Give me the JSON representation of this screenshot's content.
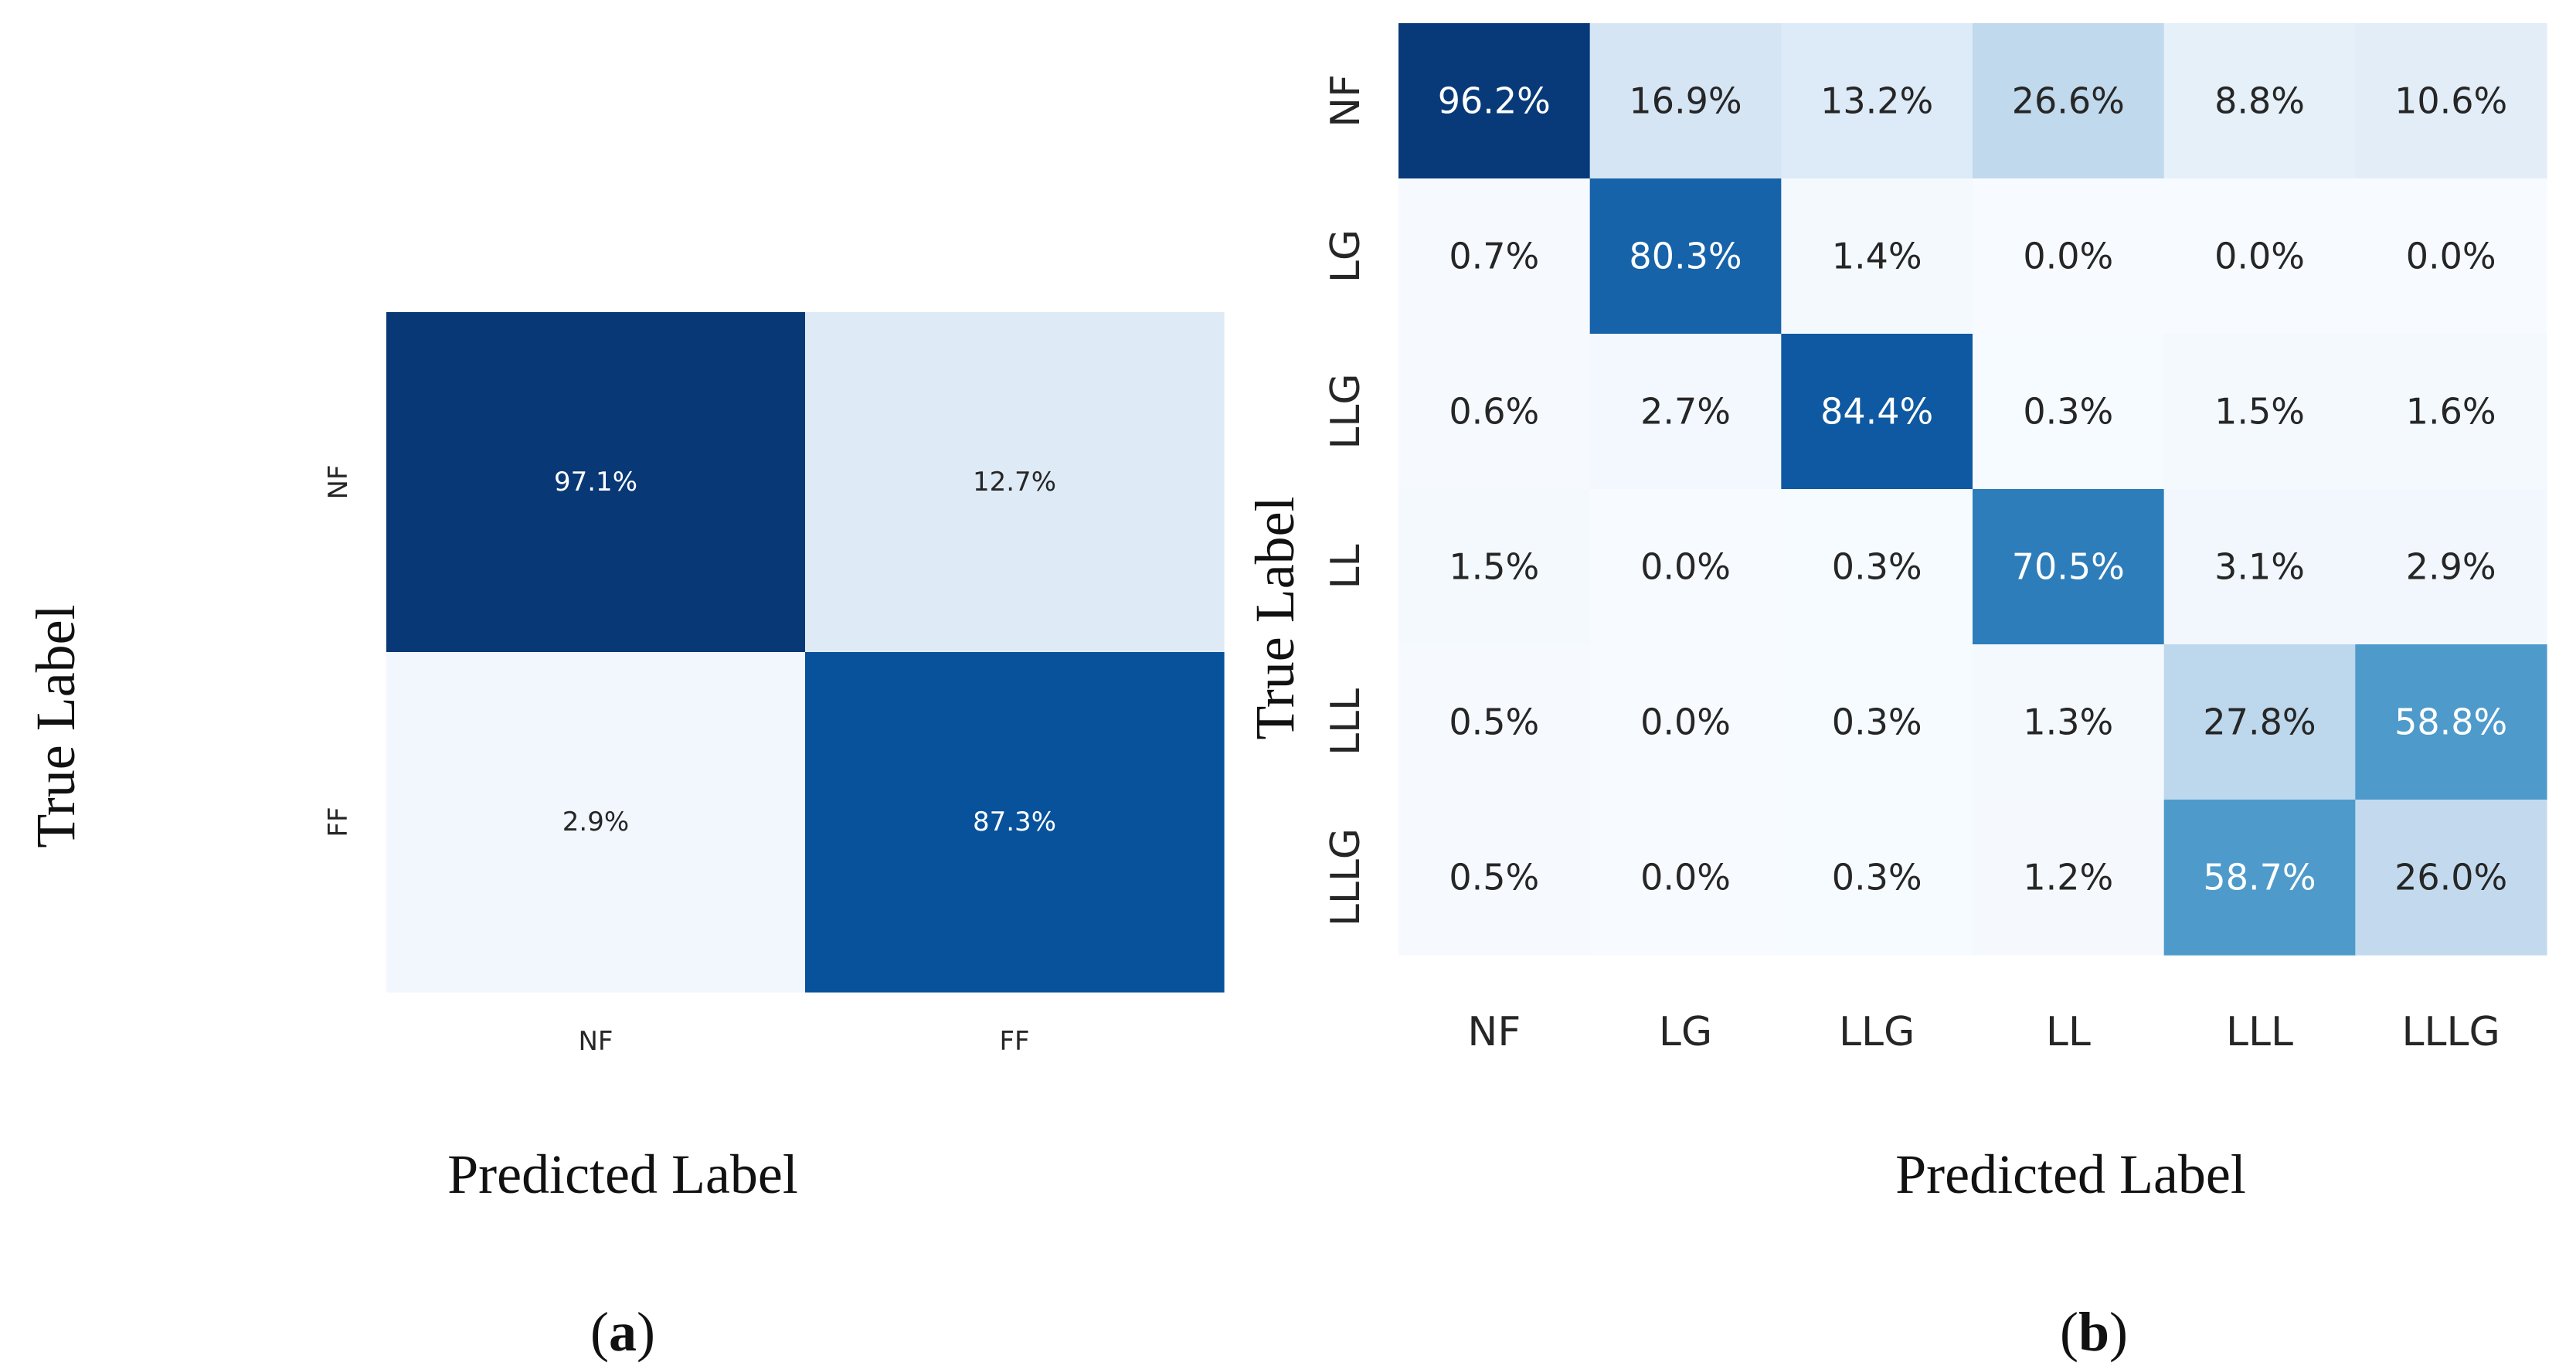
{
  "chart_data": [
    {
      "type": "heatmap",
      "panel": "a",
      "panel_label": "(a)",
      "xlabel": "Predicted Label",
      "ylabel": "True Label",
      "x_categories": [
        "NF",
        "FF"
      ],
      "y_categories": [
        "NF",
        "FF"
      ],
      "values": [
        [
          97.1,
          12.7
        ],
        [
          2.9,
          87.3
        ]
      ],
      "cell_labels": [
        [
          "97.1%",
          "12.7%"
        ],
        [
          "2.9%",
          "87.3%"
        ]
      ],
      "colormap": "Blues",
      "vmin": 0,
      "vmax": 100
    },
    {
      "type": "heatmap",
      "panel": "b",
      "panel_label": "(b)",
      "xlabel": "Predicted Label",
      "ylabel": "True Label",
      "x_categories": [
        "NF",
        "LG",
        "LLG",
        "LL",
        "LLL",
        "LLLG"
      ],
      "y_categories": [
        "NF",
        "LG",
        "LLG",
        "LL",
        "LLL",
        "LLLG"
      ],
      "values": [
        [
          96.2,
          16.9,
          13.2,
          26.6,
          8.8,
          10.6
        ],
        [
          0.7,
          80.3,
          1.4,
          0.0,
          0.0,
          0.0
        ],
        [
          0.6,
          2.7,
          84.4,
          0.3,
          1.5,
          1.6
        ],
        [
          1.5,
          0.0,
          0.3,
          70.5,
          3.1,
          2.9
        ],
        [
          0.5,
          0.0,
          0.3,
          1.3,
          27.8,
          58.8
        ],
        [
          0.5,
          0.0,
          0.3,
          1.2,
          58.7,
          26.0
        ]
      ],
      "cell_labels": [
        [
          "96.2%",
          "16.9%",
          "13.2%",
          "26.6%",
          "8.8%",
          "10.6%"
        ],
        [
          "0.7%",
          "80.3%",
          "1.4%",
          "0.0%",
          "0.0%",
          "0.0%"
        ],
        [
          "0.6%",
          "2.7%",
          "84.4%",
          "0.3%",
          "1.5%",
          "1.6%"
        ],
        [
          "1.5%",
          "0.0%",
          "0.3%",
          "70.5%",
          "3.1%",
          "2.9%"
        ],
        [
          "0.5%",
          "0.0%",
          "0.3%",
          "1.3%",
          "27.8%",
          "58.8%"
        ],
        [
          "0.5%",
          "0.0%",
          "0.3%",
          "1.2%",
          "58.7%",
          "26.0%"
        ]
      ],
      "colormap": "Blues",
      "vmin": 0,
      "vmax": 100
    }
  ]
}
